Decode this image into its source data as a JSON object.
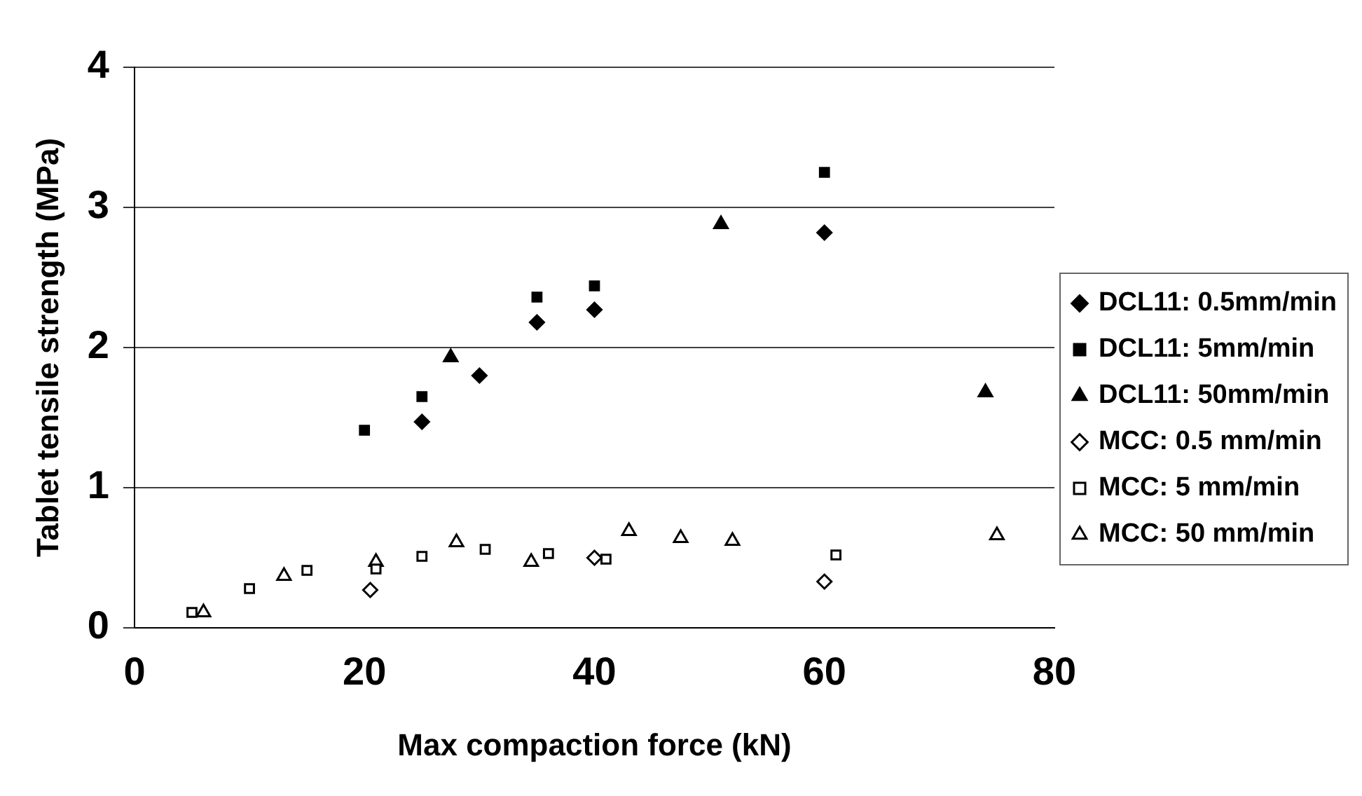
{
  "chart_data": {
    "type": "scatter",
    "xlabel": "Max compaction force (kN)",
    "ylabel": "Tablet tensile strength (MPa)",
    "xlim": [
      0,
      80
    ],
    "xticks": [
      0,
      20,
      40,
      60,
      80
    ],
    "ylim": [
      0,
      4
    ],
    "yticks": [
      0,
      1,
      2,
      3,
      4
    ],
    "grid": "y",
    "legend": "right",
    "series": [
      {
        "name": "DCL11: 0.5mm/min",
        "color": "#000000",
        "marker": "diamond",
        "x": [
          25,
          30,
          35,
          40,
          60
        ],
        "values": [
          1.47,
          1.8,
          2.18,
          2.27,
          2.82
        ]
      },
      {
        "name": "DCL11: 5mm/min",
        "color": "#000000",
        "marker": "square",
        "x": [
          20,
          25,
          35,
          40,
          60
        ],
        "values": [
          1.41,
          1.65,
          2.36,
          2.44,
          3.25
        ]
      },
      {
        "name": "DCL11: 50mm/min",
        "color": "#000000",
        "marker": "triangle",
        "x": [
          27.5,
          51,
          74
        ],
        "values": [
          1.93,
          2.88,
          1.68
        ]
      },
      {
        "name": "MCC: 0.5 mm/min",
        "color": "#ffffff",
        "marker": "diamond",
        "x": [
          20.5,
          40,
          60
        ],
        "values": [
          0.27,
          0.5,
          0.33
        ]
      },
      {
        "name": "MCC: 5 mm/min",
        "color": "#ffffff",
        "marker": "square",
        "x": [
          5,
          10,
          15,
          21,
          25,
          30.5,
          36,
          41,
          61
        ],
        "values": [
          0.11,
          0.28,
          0.41,
          0.42,
          0.51,
          0.56,
          0.53,
          0.49,
          0.52
        ]
      },
      {
        "name": "MCC: 50 mm/min",
        "color": "#ffffff",
        "marker": "triangle",
        "x": [
          6,
          13,
          21,
          28,
          34.5,
          43,
          47.5,
          52,
          75
        ],
        "values": [
          0.11,
          0.37,
          0.47,
          0.61,
          0.47,
          0.69,
          0.64,
          0.62,
          0.66
        ]
      }
    ]
  }
}
